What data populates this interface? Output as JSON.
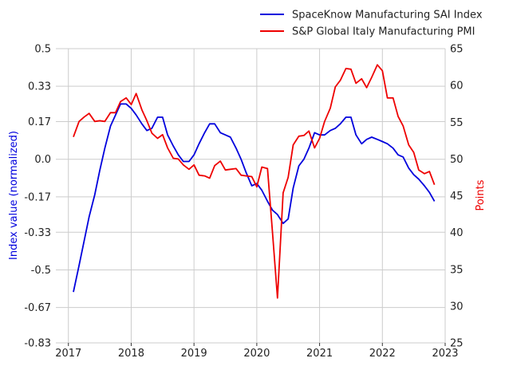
{
  "chart_data": {
    "type": "line",
    "title": "",
    "xlabel": "",
    "ylabel_left": "Index value (normalized)",
    "ylabel_right": "Points",
    "xlim": [
      2016.8,
      2023.0
    ],
    "ylim_left": [
      -0.83,
      0.5
    ],
    "ylim_right": [
      25,
      65
    ],
    "x_ticks": [
      2017,
      2018,
      2019,
      2020,
      2021,
      2022,
      2023
    ],
    "x_tick_labels": [
      "2017",
      "2018",
      "2019",
      "2020",
      "2021",
      "2022",
      "2023"
    ],
    "y_left_ticks": [
      0.5,
      0.33,
      0.17,
      0.0,
      -0.17,
      -0.33,
      -0.5,
      -0.67,
      -0.83
    ],
    "y_left_tick_labels": [
      "0.5",
      "0.33",
      "0.17",
      "0.0",
      "-0.17",
      "-0.33",
      "-0.5",
      "-0.67",
      "-0.83"
    ],
    "y_right_ticks": [
      65,
      60,
      55,
      50,
      45,
      40,
      35,
      30,
      25
    ],
    "y_right_tick_labels": [
      "65",
      "60",
      "55",
      "50",
      "45",
      "40",
      "35",
      "30",
      "25"
    ],
    "grid": true,
    "legend": "top-right",
    "colors": {
      "sai": "#0000dd",
      "pmi": "#ee0000",
      "grid": "#cccccc",
      "left_label": "#0000dd",
      "right_label": "#ee0000"
    },
    "series": [
      {
        "name": "SpaceKnow Manufacturing SAI Index",
        "axis": "left",
        "x": [
          2017.08,
          2017.17,
          2017.25,
          2017.33,
          2017.42,
          2017.5,
          2017.58,
          2017.67,
          2017.75,
          2017.83,
          2017.92,
          2018.0,
          2018.08,
          2018.17,
          2018.25,
          2018.33,
          2018.42,
          2018.5,
          2018.58,
          2018.67,
          2018.75,
          2018.83,
          2018.92,
          2019.0,
          2019.08,
          2019.17,
          2019.25,
          2019.33,
          2019.42,
          2019.5,
          2019.58,
          2019.67,
          2019.75,
          2019.83,
          2019.92,
          2020.0,
          2020.08,
          2020.17,
          2020.25,
          2020.33,
          2020.42,
          2020.5,
          2020.58,
          2020.67,
          2020.75,
          2020.83,
          2020.92,
          2021.0,
          2021.08,
          2021.17,
          2021.25,
          2021.33,
          2021.42,
          2021.5,
          2021.58,
          2021.67,
          2021.75,
          2021.83,
          2021.92,
          2022.0,
          2022.08,
          2022.17,
          2022.25,
          2022.33,
          2022.42,
          2022.5,
          2022.58,
          2022.67,
          2022.75,
          2022.83
        ],
        "y": [
          -0.6,
          -0.48,
          -0.37,
          -0.26,
          -0.16,
          -0.05,
          0.05,
          0.15,
          0.2,
          0.25,
          0.25,
          0.23,
          0.2,
          0.16,
          0.13,
          0.14,
          0.19,
          0.19,
          0.11,
          0.06,
          0.02,
          -0.01,
          -0.01,
          0.02,
          0.07,
          0.12,
          0.16,
          0.16,
          0.12,
          0.11,
          0.1,
          0.05,
          0.0,
          -0.06,
          -0.12,
          -0.11,
          -0.14,
          -0.19,
          -0.23,
          -0.25,
          -0.29,
          -0.27,
          -0.13,
          -0.03,
          0.0,
          0.05,
          0.12,
          0.11,
          0.11,
          0.13,
          0.14,
          0.16,
          0.19,
          0.19,
          0.11,
          0.07,
          0.09,
          0.1,
          0.09,
          0.08,
          0.07,
          0.05,
          0.02,
          0.01,
          -0.04,
          -0.07,
          -0.09,
          -0.12,
          -0.15,
          -0.19
        ]
      },
      {
        "name": "S&P Global Italy Manufacturing PMI",
        "axis": "right",
        "x": [
          2017.08,
          2017.17,
          2017.25,
          2017.33,
          2017.42,
          2017.5,
          2017.58,
          2017.67,
          2017.75,
          2017.83,
          2017.92,
          2018.0,
          2018.08,
          2018.17,
          2018.25,
          2018.33,
          2018.42,
          2018.5,
          2018.58,
          2018.67,
          2018.75,
          2018.83,
          2018.92,
          2019.0,
          2019.08,
          2019.17,
          2019.25,
          2019.33,
          2019.42,
          2019.5,
          2019.58,
          2019.67,
          2019.75,
          2019.83,
          2019.92,
          2020.0,
          2020.08,
          2020.17,
          2020.25,
          2020.33,
          2020.42,
          2020.5,
          2020.58,
          2020.67,
          2020.75,
          2020.83,
          2020.92,
          2021.0,
          2021.08,
          2021.17,
          2021.25,
          2021.33,
          2021.42,
          2021.5,
          2021.58,
          2021.67,
          2021.75,
          2021.83,
          2021.92,
          2022.0,
          2022.08,
          2022.17,
          2022.25,
          2022.33,
          2022.42,
          2022.5,
          2022.58,
          2022.67,
          2022.75,
          2022.83
        ],
        "y": [
          53.0,
          55.1,
          55.7,
          56.2,
          55.1,
          55.2,
          55.1,
          56.3,
          56.3,
          57.8,
          58.3,
          57.4,
          58.9,
          56.7,
          55.2,
          53.5,
          52.8,
          53.3,
          51.5,
          50.1,
          50.0,
          49.2,
          48.6,
          49.2,
          47.8,
          47.7,
          47.4,
          49.1,
          49.7,
          48.5,
          48.6,
          48.7,
          47.8,
          47.7,
          47.6,
          46.2,
          48.9,
          48.7,
          40.1,
          31.1,
          45.4,
          47.5,
          51.9,
          53.1,
          53.2,
          53.8,
          51.5,
          52.8,
          55.1,
          56.9,
          59.8,
          60.7,
          62.3,
          62.2,
          60.3,
          60.9,
          59.7,
          61.1,
          62.8,
          62.0,
          58.3,
          58.3,
          55.8,
          54.5,
          51.9,
          50.9,
          48.5,
          48.0,
          48.3,
          46.5
        ]
      }
    ]
  }
}
